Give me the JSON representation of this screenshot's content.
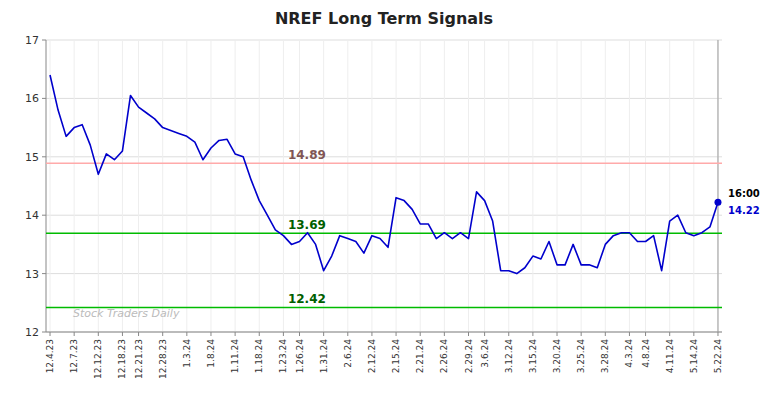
{
  "chart_data": {
    "type": "line",
    "title": "NREF Long Term Signals",
    "categories": [
      "12.4.23",
      null,
      null,
      "12.7.23",
      null,
      null,
      "12.12.23",
      null,
      null,
      "12.18.23",
      null,
      "12.21.23",
      null,
      null,
      "12.28.23",
      null,
      null,
      "1.3.24",
      null,
      null,
      "1.8.24",
      null,
      null,
      "1.11.24",
      null,
      null,
      "1.18.24",
      null,
      null,
      "1.23.24",
      null,
      "1.26.24",
      null,
      null,
      "1.31.24",
      null,
      null,
      "2.6.24",
      null,
      null,
      "2.12.24",
      null,
      null,
      "2.15.24",
      null,
      null,
      "2.21.24",
      null,
      null,
      "2.26.24",
      null,
      null,
      "2.29.24",
      null,
      "3.6.24",
      null,
      null,
      "3.12.24",
      null,
      null,
      "3.15.24",
      null,
      null,
      "3.20.24",
      null,
      null,
      "3.25.24",
      null,
      null,
      "3.28.24",
      null,
      null,
      "4.3.24",
      null,
      "4.8.24",
      null,
      null,
      "4.11.24",
      null,
      null,
      "5.14.24",
      null,
      null,
      "5.22.24"
    ],
    "series": [
      {
        "name": "NREF",
        "color": "#0000cc",
        "values": [
          16.4,
          15.8,
          15.35,
          15.5,
          15.55,
          15.2,
          14.7,
          15.05,
          14.95,
          15.1,
          16.05,
          15.85,
          15.75,
          15.65,
          15.5,
          15.45,
          15.4,
          15.35,
          15.25,
          14.95,
          15.15,
          15.28,
          15.3,
          15.05,
          15.0,
          14.6,
          14.25,
          14.0,
          13.75,
          13.65,
          13.5,
          13.55,
          13.7,
          13.5,
          13.05,
          13.3,
          13.65,
          13.6,
          13.55,
          13.35,
          13.65,
          13.6,
          13.45,
          14.3,
          14.25,
          14.1,
          13.85,
          13.85,
          13.6,
          13.7,
          13.6,
          13.7,
          13.6,
          14.4,
          14.25,
          13.9,
          13.05,
          13.05,
          13.0,
          13.1,
          13.3,
          13.25,
          13.55,
          13.15,
          13.15,
          13.5,
          13.15,
          13.15,
          13.1,
          13.5,
          13.65,
          13.7,
          13.7,
          13.55,
          13.55,
          13.65,
          13.05,
          13.9,
          14.0,
          13.7,
          13.65,
          13.7,
          13.8,
          14.22
        ]
      }
    ],
    "annotations": [
      {
        "y": 14.89,
        "text": "14.89",
        "color": "#ffaaaa"
      },
      {
        "y": 13.69,
        "text": "13.69",
        "color": "#00bb00"
      },
      {
        "y": 12.42,
        "text": "12.42",
        "color": "#00bb00"
      }
    ],
    "last_time": "16:00",
    "watermark": "Stock Traders Daily",
    "ylim": [
      12,
      17
    ],
    "yticks": [
      12,
      13,
      14,
      15,
      16,
      17
    ],
    "grid": true
  }
}
